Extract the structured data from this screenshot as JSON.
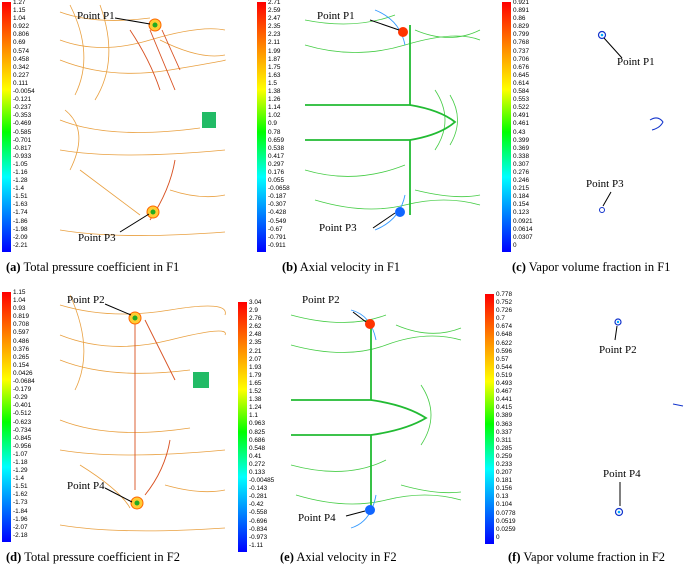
{
  "panels": [
    {
      "tag": "(a)",
      "caption": "Total pressure coefficient in F1",
      "points": [
        "Point P1",
        "Point P3"
      ],
      "scale": [
        "1.27",
        "1.15",
        "1.04",
        "0.922",
        "0.806",
        "0.69",
        "0.574",
        "0.458",
        "0.342",
        "0.227",
        "0.111",
        "-0.0054",
        "-0.121",
        "-0.237",
        "-0.353",
        "-0.469",
        "-0.585",
        "-0.701",
        "-0.817",
        "-0.933",
        "-1.05",
        "-1.16",
        "-1.28",
        "-1.4",
        "-1.51",
        "-1.63",
        "-1.74",
        "-1.86",
        "-1.98",
        "-2.09",
        "-2.21"
      ]
    },
    {
      "tag": "(b)",
      "caption": "Axial velocity in F1",
      "points": [
        "Point P1",
        "Point P3"
      ],
      "scale": [
        "2.71",
        "2.59",
        "2.47",
        "2.35",
        "2.23",
        "2.11",
        "1.99",
        "1.87",
        "1.75",
        "1.63",
        "1.5",
        "1.38",
        "1.26",
        "1.14",
        "1.02",
        "0.9",
        "0.78",
        "0.659",
        "0.538",
        "0.417",
        "0.297",
        "0.176",
        "0.055",
        "-0.0658",
        "-0.187",
        "-0.307",
        "-0.428",
        "-0.549",
        "-0.67",
        "-0.791",
        "-0.911"
      ]
    },
    {
      "tag": "(c)",
      "caption": "Vapor volume fraction in F1",
      "points": [
        "Point P1",
        "Point P3"
      ],
      "scale": [
        "0.921",
        "0.891",
        "0.86",
        "0.829",
        "0.799",
        "0.768",
        "0.737",
        "0.706",
        "0.676",
        "0.645",
        "0.614",
        "0.584",
        "0.553",
        "0.522",
        "0.491",
        "0.461",
        "0.43",
        "0.399",
        "0.369",
        "0.338",
        "0.307",
        "0.276",
        "0.246",
        "0.215",
        "0.184",
        "0.154",
        "0.123",
        "0.0921",
        "0.0614",
        "0.0307",
        "0"
      ]
    },
    {
      "tag": "(d)",
      "caption": "Total pressure coefficient in F2",
      "points": [
        "Point P2",
        "Point P4"
      ],
      "scale": [
        "1.15",
        "1.04",
        "0.93",
        "0.819",
        "0.708",
        "0.597",
        "0.486",
        "0.376",
        "0.265",
        "0.154",
        "0.0426",
        "-0.0684",
        "-0.179",
        "-0.29",
        "-0.401",
        "-0.512",
        "-0.623",
        "-0.734",
        "-0.845",
        "-0.956",
        "-1.07",
        "-1.18",
        "-1.29",
        "-1.4",
        "-1.51",
        "-1.62",
        "-1.73",
        "-1.84",
        "-1.96",
        "-2.07",
        "-2.18"
      ]
    },
    {
      "tag": "(e)",
      "caption": "Axial velocity in F2",
      "points": [
        "Point P2",
        "Point P4"
      ],
      "scale": [
        "3.04",
        "2.9",
        "2.76",
        "2.62",
        "2.48",
        "2.35",
        "2.21",
        "2.07",
        "1.93",
        "1.79",
        "1.65",
        "1.52",
        "1.38",
        "1.24",
        "1.1",
        "0.963",
        "0.825",
        "0.686",
        "0.548",
        "0.41",
        "0.272",
        "0.133",
        "-0.00485",
        "-0.143",
        "-0.281",
        "-0.42",
        "-0.558",
        "-0.696",
        "-0.834",
        "-0.973",
        "-1.11"
      ]
    },
    {
      "tag": "(f)",
      "caption": "Vapor volume fraction in F2",
      "points": [
        "Point P2",
        "Point P4"
      ],
      "scale": [
        "0.778",
        "0.752",
        "0.726",
        "0.7",
        "0.674",
        "0.648",
        "0.622",
        "0.596",
        "0.57",
        "0.544",
        "0.519",
        "0.493",
        "0.467",
        "0.441",
        "0.415",
        "0.389",
        "0.363",
        "0.337",
        "0.311",
        "0.285",
        "0.259",
        "0.233",
        "0.207",
        "0.181",
        "0.156",
        "0.13",
        "0.104",
        "0.0778",
        "0.0519",
        "0.0259",
        "0"
      ]
    }
  ]
}
